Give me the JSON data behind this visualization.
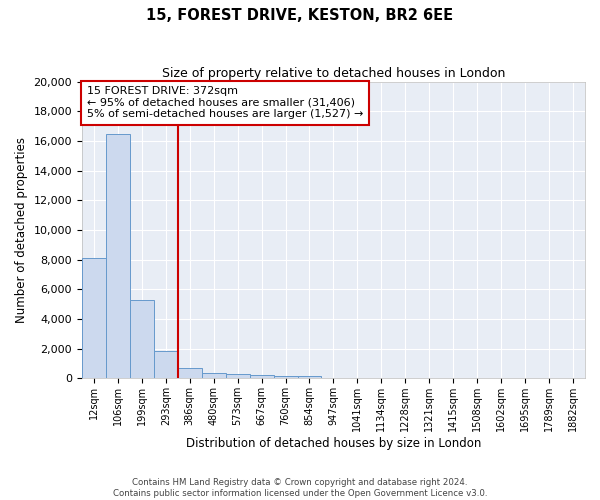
{
  "title": "15, FOREST DRIVE, KESTON, BR2 6EE",
  "subtitle": "Size of property relative to detached houses in London",
  "xlabel": "Distribution of detached houses by size in London",
  "ylabel": "Number of detached properties",
  "bar_color": "#ccd9ee",
  "bar_edge_color": "#6699cc",
  "vline_color": "#cc0000",
  "vline_x": 3.5,
  "annotation_title": "15 FOREST DRIVE: 372sqm",
  "annotation_line1": "← 95% of detached houses are smaller (31,406)",
  "annotation_line2": "5% of semi-detached houses are larger (1,527) →",
  "categories": [
    "12sqm",
    "106sqm",
    "199sqm",
    "293sqm",
    "386sqm",
    "480sqm",
    "573sqm",
    "667sqm",
    "760sqm",
    "854sqm",
    "947sqm",
    "1041sqm",
    "1134sqm",
    "1228sqm",
    "1321sqm",
    "1415sqm",
    "1508sqm",
    "1602sqm",
    "1695sqm",
    "1789sqm",
    "1882sqm"
  ],
  "values": [
    8100,
    16500,
    5300,
    1850,
    700,
    350,
    260,
    210,
    180,
    150,
    0,
    0,
    0,
    0,
    0,
    0,
    0,
    0,
    0,
    0,
    0
  ],
  "ylim": [
    0,
    20000
  ],
  "yticks": [
    0,
    2000,
    4000,
    6000,
    8000,
    10000,
    12000,
    14000,
    16000,
    18000,
    20000
  ],
  "background_color": "#e8edf5",
  "footer1": "Contains HM Land Registry data © Crown copyright and database right 2024.",
  "footer2": "Contains public sector information licensed under the Open Government Licence v3.0."
}
